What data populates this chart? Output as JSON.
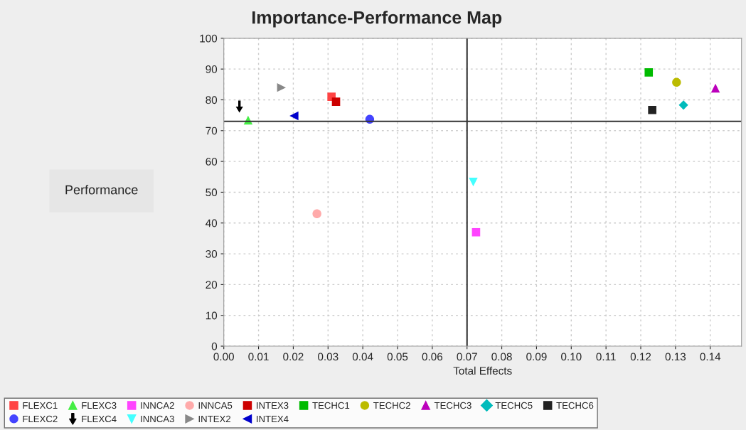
{
  "chart_data": {
    "type": "scatter",
    "title": "Importance-Performance Map",
    "xlabel": "Total Effects",
    "ylabel": "Performance",
    "xlim": [
      0,
      0.149
    ],
    "xticks": [
      {
        "value": 0,
        "label": "0.00"
      },
      {
        "value": 0.01,
        "label": "0.01"
      },
      {
        "value": 0.02,
        "label": "0.02"
      },
      {
        "value": 0.03,
        "label": "0.03"
      },
      {
        "value": 0.04,
        "label": "0.04"
      },
      {
        "value": 0.05,
        "label": "0.05"
      },
      {
        "value": 0.06,
        "label": "0.06"
      },
      {
        "value": 0.07,
        "label": "0.07"
      },
      {
        "value": 0.08,
        "label": "0.08"
      },
      {
        "value": 0.09,
        "label": "0.09"
      },
      {
        "value": 0.1,
        "label": "0.10"
      },
      {
        "value": 0.11,
        "label": "0.11"
      },
      {
        "value": 0.12,
        "label": "0.12"
      },
      {
        "value": 0.13,
        "label": "0.13"
      },
      {
        "value": 0.14,
        "label": "0.14"
      }
    ],
    "ylim": [
      0,
      100
    ],
    "yticks": [
      0,
      10,
      20,
      30,
      40,
      50,
      60,
      70,
      80,
      90,
      100
    ],
    "grid": true,
    "legend": "bottom",
    "ref_lines": [
      {
        "axis": "x",
        "value": 0.07,
        "color": "#333333"
      },
      {
        "axis": "y",
        "value": 73,
        "color": "#333333"
      }
    ],
    "series": [
      {
        "name": "FLEXC1",
        "color": "#ff4444",
        "marker": "square",
        "x": [
          0.031
        ],
        "values": [
          81
        ]
      },
      {
        "name": "FLEXC2",
        "color": "#4444ff",
        "marker": "circle",
        "x": [
          0.042
        ],
        "values": [
          73.7
        ]
      },
      {
        "name": "FLEXC3",
        "color": "#44ee44",
        "marker": "triangle",
        "x": [
          0.007
        ],
        "values": [
          73.4
        ]
      },
      {
        "name": "FLEXC4",
        "color": "#000000",
        "x": [
          0.0045
        ],
        "values": [
          77.8
        ]
      },
      {
        "name": "INNCA2",
        "color": "#ff44ff",
        "marker": "square",
        "x": [
          0.0726
        ],
        "values": [
          37
        ]
      },
      {
        "name": "INNCA3",
        "color": "#44ffff",
        "marker": "triangle_down",
        "x": [
          0.0718
        ],
        "values": [
          53.3
        ]
      },
      {
        "name": "INNCA5",
        "color": "#ffaaaa",
        "marker": "circle",
        "x": [
          0.0268
        ],
        "values": [
          43
        ]
      },
      {
        "name": "INTEX2",
        "color": "#888888",
        "marker": "triangle_right",
        "x": [
          0.0166
        ],
        "values": [
          84
        ]
      },
      {
        "name": "INTEX3",
        "color": "#cc0000",
        "marker": "square",
        "x": [
          0.0323
        ],
        "values": [
          79.4
        ]
      },
      {
        "name": "INTEX4",
        "color": "#0000cc",
        "marker": "triangle_left",
        "x": [
          0.0202
        ],
        "values": [
          74.8
        ]
      },
      {
        "name": "TECHC1",
        "color": "#00bb00",
        "marker": "square",
        "x": [
          0.1223
        ],
        "values": [
          88.9
        ]
      },
      {
        "name": "TECHC2",
        "color": "#bbbb00",
        "marker": "circle",
        "x": [
          0.1303
        ],
        "values": [
          85.7
        ]
      },
      {
        "name": "TECHC3",
        "color": "#bb00bb",
        "marker": "triangle",
        "x": [
          0.1415
        ],
        "values": [
          83.8
        ]
      },
      {
        "name": "TECHC5",
        "color": "#00bbbb",
        "marker": "diamond",
        "x": [
          0.1323
        ],
        "values": [
          78.3
        ]
      },
      {
        "name": "TECHC6",
        "color": "#222222",
        "marker": "square",
        "x": [
          0.1233
        ],
        "values": [
          76.7
        ]
      }
    ]
  }
}
